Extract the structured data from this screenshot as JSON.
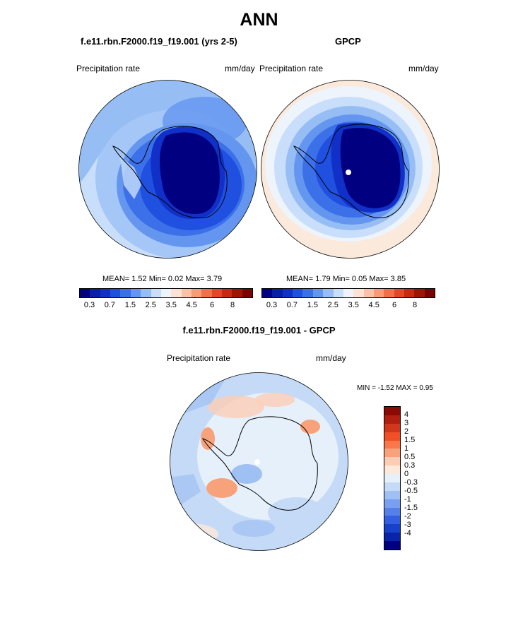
{
  "figure": {
    "title": "ANN",
    "left_panel": {
      "title": "f.e11.rbn.F2000.f19_f19.001 (yrs 2-5)",
      "variable": "Precipitation rate",
      "units": "mm/day",
      "stats": "MEAN=   1.52  Min=   0.02  Max=   3.79"
    },
    "right_panel": {
      "title": "GPCP",
      "variable": "Precipitation rate",
      "units": "mm/day",
      "stats": "MEAN=   1.79  Min=   0.05  Max=   3.85"
    },
    "diff_panel": {
      "title": "f.e11.rbn.F2000.f19_f19.001 - GPCP",
      "variable": "Precipitation rate",
      "units": "mm/day",
      "minmax": "MIN =  -1.52 MAX =    0.95"
    }
  },
  "colorbar_abs": {
    "colors": [
      "#000080",
      "#0a1ea8",
      "#1030c8",
      "#2050e0",
      "#3c70e8",
      "#6496f0",
      "#96bef5",
      "#c8defa",
      "#eef4fc",
      "#fde3d5",
      "#fcc2a8",
      "#f99a78",
      "#f46e4c",
      "#e6452a",
      "#c82814",
      "#a01406",
      "#780404"
    ],
    "tick_labels": [
      "0.3",
      "0.7",
      "1.5",
      "2.5",
      "3.5",
      "4.5",
      "6",
      "8"
    ]
  },
  "colorbar_diff": {
    "colors": [
      "#8b0a05",
      "#b02010",
      "#d0381e",
      "#f05028",
      "#f8784c",
      "#f8a27c",
      "#fbcdb5",
      "#fbe9dc",
      "#e6f0fa",
      "#c5daf6",
      "#9ec0f2",
      "#789ff0",
      "#5580e8",
      "#3360e0",
      "#1840c8",
      "#0a24a8",
      "#000080"
    ],
    "labels": [
      "4",
      "3",
      "2",
      "1.5",
      "1",
      "0.5",
      "0.3",
      "0",
      "-0.3",
      "-0.5",
      "-1",
      "-1.5",
      "-2",
      "-3",
      "-4"
    ]
  },
  "icons": {
    "maps": [
      "polar-stereographic-map-icon"
    ]
  }
}
